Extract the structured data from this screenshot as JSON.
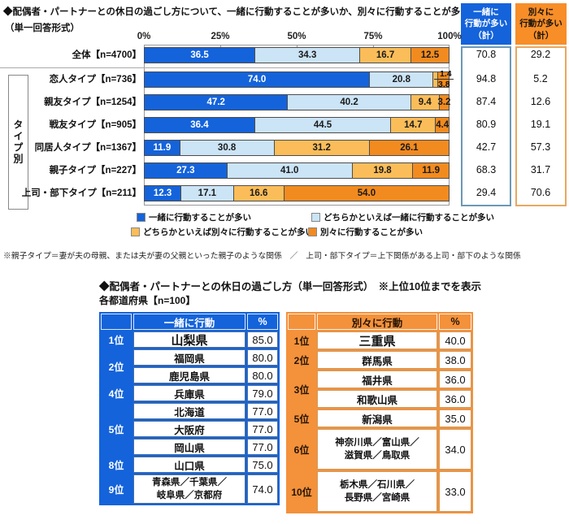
{
  "section1": {
    "title": "◆配偶者・パートナーとの休日の過ごし方について、一緒に行動することが多いか、別々に行動することが多いか",
    "subtitle": "（単一回答形式）",
    "group_label": "タイプ別",
    "summary_together_header": "一緒に\n行動が多い\n（計）",
    "summary_separate_header": "別々に\n行動が多い\n（計）",
    "note": "※親子タイプ＝妻が夫の母親、または夫が妻の父親といった親子のような関係　／　上司・部下タイプ＝上下関係がある上司・部下のような関係"
  },
  "section2": {
    "title": "◆配偶者・パートナーとの休日の過ごし方（単一回答形式）　※上位10位までを表示",
    "subtitle": "各都道府県【n=100】"
  },
  "legend": [
    {
      "label": "一緒に行動することが多い",
      "color": "#1463DB"
    },
    {
      "label": "どちらかといえば一緒に行動することが多い",
      "color": "#CBE4F6"
    },
    {
      "label": "どちらかといえば別々に行動することが多い",
      "color": "#FBBD59"
    },
    {
      "label": "別々に行動することが多い",
      "color": "#F28B1F"
    }
  ],
  "colors": {
    "blue": "#1463DB",
    "light_blue": "#CBE4F6",
    "amber": "#FBBD59",
    "orange": "#F28B1F",
    "summary_header_orange": "#F78E28",
    "summary_blue_border": "#6B98B5",
    "summary_orange_border": "#E9A75F",
    "table_blue": "#1463DB",
    "table_orange": "#F4913B",
    "cell_border_blue": "#4A6F9E",
    "cell_border_orange": "#D29A5C"
  },
  "chart_data": [
    {
      "type": "bar",
      "stacked": true,
      "orientation": "horizontal",
      "unit": "%",
      "xlim": [
        0,
        100
      ],
      "x_ticks": [
        "0%",
        "25%",
        "50%",
        "75%",
        "100%"
      ],
      "categories": [
        "全体【n=4700】",
        "恋人タイプ【n=736】",
        "親友タイプ【n=1254】",
        "戦友タイプ【n=905】",
        "同居人タイプ【n=1367】",
        "親子タイプ【n=227】",
        "上司・部下タイプ【n=211】"
      ],
      "series": [
        {
          "name": "一緒に行動することが多い",
          "color": "#1463DB",
          "values": [
            36.5,
            74.0,
            47.2,
            36.4,
            11.9,
            27.3,
            12.3
          ]
        },
        {
          "name": "どちらかといえば一緒に行動することが多い",
          "color": "#CBE4F6",
          "values": [
            34.3,
            20.8,
            40.2,
            44.5,
            30.8,
            41.0,
            17.1
          ]
        },
        {
          "name": "どちらかといえば別々に行動することが多い",
          "color": "#FBBD59",
          "values": [
            16.7,
            1.4,
            9.4,
            14.7,
            31.2,
            19.8,
            16.6
          ]
        },
        {
          "name": "別々に行動することが多い",
          "color": "#F28B1F",
          "values": [
            12.5,
            3.8,
            3.2,
            4.4,
            26.1,
            11.9,
            54.0
          ]
        }
      ],
      "together_total": [
        70.8,
        94.8,
        87.4,
        80.9,
        42.7,
        68.3,
        29.4
      ],
      "separate_total": [
        29.2,
        5.2,
        12.6,
        19.1,
        57.3,
        31.7,
        70.6
      ]
    },
    {
      "type": "table",
      "title": "一緒に行動",
      "pct_header": "%",
      "groups": [
        {
          "rank": "1位",
          "rows": [
            {
              "name": "山梨県",
              "value": "85.0",
              "big": true
            }
          ]
        },
        {
          "rank": "2位",
          "rows": [
            {
              "name": "福岡県",
              "value": "80.0"
            },
            {
              "name": "鹿児島県",
              "value": "80.0"
            }
          ]
        },
        {
          "rank": "4位",
          "rows": [
            {
              "name": "兵庫県",
              "value": "79.0"
            }
          ]
        },
        {
          "rank": "5位",
          "rows": [
            {
              "name": "北海道",
              "value": "77.0"
            },
            {
              "name": "大阪府",
              "value": "77.0"
            },
            {
              "name": "岡山県",
              "value": "77.0"
            }
          ]
        },
        {
          "rank": "8位",
          "rows": [
            {
              "name": "山口県",
              "value": "75.0"
            }
          ]
        },
        {
          "rank": "9位",
          "rows": [
            {
              "name": "青森県／千葉県／\n岐阜県／京都府",
              "value": "74.0",
              "tall": true
            }
          ]
        }
      ]
    },
    {
      "type": "table",
      "title": "別々に行動",
      "pct_header": "%",
      "groups": [
        {
          "rank": "1位",
          "rows": [
            {
              "name": "三重県",
              "value": "40.0",
              "big": true
            }
          ]
        },
        {
          "rank": "2位",
          "rows": [
            {
              "name": "群馬県",
              "value": "38.0"
            }
          ]
        },
        {
          "rank": "3位",
          "rows": [
            {
              "name": "福井県",
              "value": "36.0"
            },
            {
              "name": "和歌山県",
              "value": "36.0"
            }
          ]
        },
        {
          "rank": "5位",
          "rows": [
            {
              "name": "新潟県",
              "value": "35.0"
            }
          ]
        },
        {
          "rank": "6位",
          "rows": [
            {
              "name": "神奈川県／富山県／\n滋賀県／鳥取県",
              "value": "34.0",
              "tall": true
            }
          ]
        },
        {
          "rank": "10位",
          "rows": [
            {
              "name": "栃木県／石川県／\n長野県／宮崎県",
              "value": "33.0",
              "tall": true
            }
          ]
        }
      ]
    }
  ]
}
